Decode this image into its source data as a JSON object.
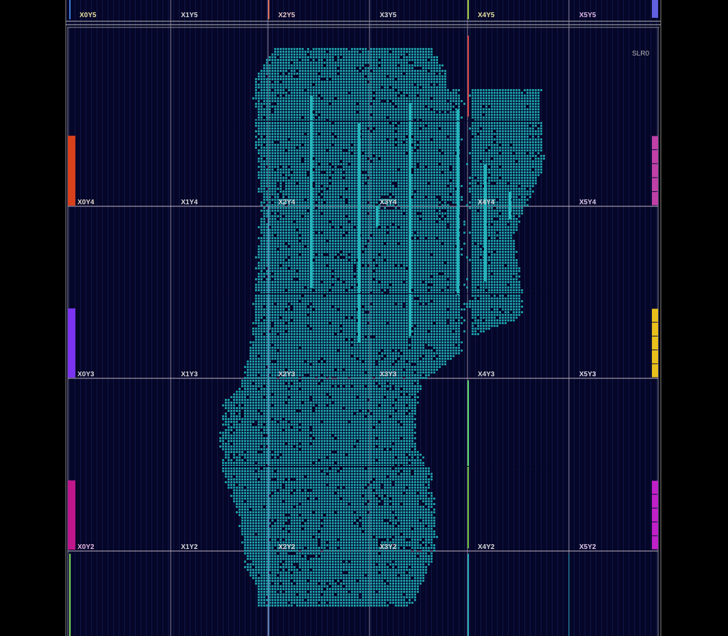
{
  "view": {
    "slr_label": "SLR0",
    "colors": {
      "background": "#000000",
      "fabric": "#050628",
      "column_line": "#101848",
      "clock_region_line": "#c8b8c8",
      "placed_cell": "#1c9aa6",
      "placed_cell_alt": "#26b4bc"
    }
  },
  "clock_regions": {
    "top_row": [
      "X0Y5",
      "X1Y5",
      "X2Y5",
      "X3Y5",
      "X4Y5",
      "X5Y5"
    ],
    "rows": [
      [
        "X0Y4",
        "X1Y4",
        "X2Y4",
        "X3Y4",
        "X4Y4",
        "X5Y4"
      ],
      [
        "X0Y3",
        "X1Y3",
        "X2Y3",
        "X3Y3",
        "X4Y3",
        "X5Y3"
      ],
      [
        "X0Y2",
        "X1Y2",
        "X2Y2",
        "X3Y2",
        "X4Y2",
        "X5Y2"
      ]
    ]
  },
  "io_banks": {
    "left": [
      "#d9401c",
      "#7a34f0",
      "#c0168c"
    ],
    "right": [
      "#c040a8",
      "#e8c01c",
      "#c020c8"
    ]
  }
}
